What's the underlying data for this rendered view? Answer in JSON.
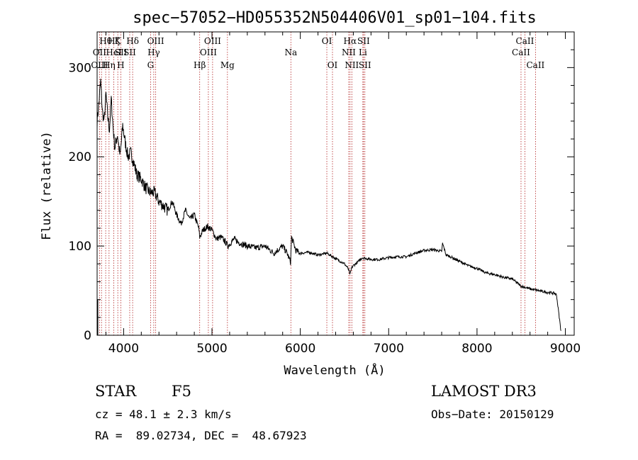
{
  "chart_data": {
    "type": "line",
    "title": "spec−57052−HD055352N504406V01_sp01−104.fits",
    "xlabel": "Wavelength (Å)",
    "ylabel": "Flux (relative)",
    "xlim": [
      3700,
      9100
    ],
    "ylim": [
      0,
      340
    ],
    "xticks": [
      4000,
      5000,
      6000,
      7000,
      8000,
      9000
    ],
    "yticks": [
      0,
      100,
      200,
      300
    ],
    "series": [
      {
        "name": "spectrum",
        "x": [
          3700,
          3720,
          3740,
          3760,
          3780,
          3800,
          3820,
          3840,
          3860,
          3880,
          3900,
          3930,
          3960,
          3990,
          4020,
          4050,
          4080,
          4110,
          4150,
          4200,
          4250,
          4300,
          4350,
          4400,
          4450,
          4500,
          4550,
          4600,
          4650,
          4700,
          4750,
          4800,
          4850,
          4861,
          4900,
          4950,
          5000,
          5050,
          5100,
          5150,
          5180,
          5250,
          5300,
          5400,
          5500,
          5600,
          5700,
          5800,
          5850,
          5890,
          5900,
          5950,
          6000,
          6100,
          6200,
          6300,
          6400,
          6500,
          6540,
          6563,
          6580,
          6600,
          6650,
          6700,
          6800,
          6900,
          7000,
          7100,
          7200,
          7300,
          7400,
          7500,
          7600,
          7610,
          7650,
          7700,
          7800,
          7900,
          8000,
          8100,
          8200,
          8300,
          8400,
          8500,
          8600,
          8700,
          8800,
          8880,
          8900,
          8950
        ],
        "values": [
          240,
          260,
          285,
          250,
          240,
          270,
          245,
          230,
          265,
          235,
          210,
          225,
          200,
          235,
          215,
          200,
          205,
          195,
          180,
          175,
          165,
          160,
          160,
          150,
          145,
          140,
          150,
          135,
          125,
          140,
          130,
          135,
          120,
          110,
          118,
          122,
          118,
          108,
          110,
          105,
          100,
          108,
          104,
          100,
          98,
          100,
          92,
          100,
          92,
          82,
          110,
          95,
          92,
          93,
          90,
          92,
          86,
          80,
          75,
          68,
          75,
          78,
          82,
          87,
          85,
          85,
          87,
          88,
          88,
          92,
          95,
          96,
          94,
          103,
          90,
          88,
          83,
          78,
          75,
          70,
          68,
          65,
          63,
          55,
          52,
          50,
          48,
          47,
          45,
          5
        ]
      }
    ],
    "annotations": [
      {
        "label": "Hθ",
        "x": 3797,
        "row": 1
      },
      {
        "label": "OII",
        "x": 3727,
        "row": 2
      },
      {
        "label": "OIII",
        "x": 3727,
        "row": 3
      },
      {
        "label": "Hη",
        "x": 3835,
        "row": 3
      },
      {
        "label": "Hζ",
        "x": 3889,
        "row": 1
      },
      {
        "label": "HeI",
        "x": 3889,
        "row": 2
      },
      {
        "label": "K",
        "x": 3934,
        "row": 1
      },
      {
        "label": "SII",
        "x": 3970,
        "row": 2
      },
      {
        "label": "H",
        "x": 3968,
        "row": 3
      },
      {
        "label": "Hδ",
        "x": 4102,
        "row": 1
      },
      {
        "label": "SII",
        "x": 4069,
        "row": 2
      },
      {
        "label": "OIII",
        "x": 4363,
        "row": 1
      },
      {
        "label": "Hγ",
        "x": 4341,
        "row": 2
      },
      {
        "label": "G",
        "x": 4305,
        "row": 3
      },
      {
        "label": "Hβ",
        "x": 4861,
        "row": 3
      },
      {
        "label": "OIII",
        "x": 5007,
        "row": 1
      },
      {
        "label": "OIII",
        "x": 4959,
        "row": 2
      },
      {
        "label": "Mg",
        "x": 5175,
        "row": 3
      },
      {
        "label": "Na",
        "x": 5893,
        "row": 2
      },
      {
        "label": "OI",
        "x": 6300,
        "row": 1
      },
      {
        "label": "OI",
        "x": 6364,
        "row": 3
      },
      {
        "label": "Hα",
        "x": 6563,
        "row": 1
      },
      {
        "label": "SII",
        "x": 6716,
        "row": 1
      },
      {
        "label": "NII",
        "x": 6548,
        "row": 2
      },
      {
        "label": "Li",
        "x": 6708,
        "row": 2
      },
      {
        "label": "NII",
        "x": 6583,
        "row": 3
      },
      {
        "label": "SII",
        "x": 6731,
        "row": 3
      },
      {
        "label": "CaII",
        "x": 8542,
        "row": 1
      },
      {
        "label": "CaII",
        "x": 8498,
        "row": 2
      },
      {
        "label": "CaII",
        "x": 8662,
        "row": 3
      }
    ],
    "line_markers": [
      3727,
      3750,
      3797,
      3835,
      3889,
      3934,
      3968,
      4069,
      4102,
      4305,
      4341,
      4363,
      4861,
      4959,
      5007,
      5175,
      5893,
      6300,
      6364,
      6548,
      6563,
      6583,
      6708,
      6716,
      6731,
      8498,
      8542,
      8662
    ]
  },
  "info": {
    "object_type": "STAR",
    "subclass": "F5",
    "survey": "LAMOST DR3",
    "cz": "cz = 48.1 ± 2.3 km/s",
    "obs_date": "Obs−Date: 20150129",
    "radec": "RA =  89.02734, DEC =  48.67923"
  }
}
